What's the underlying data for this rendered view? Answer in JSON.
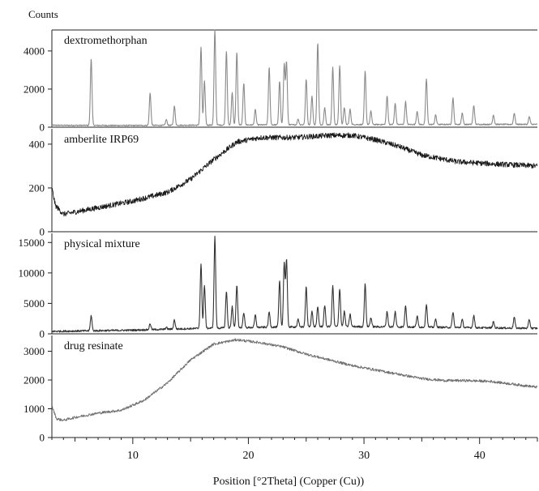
{
  "chart_data": {
    "type": "line",
    "ylabel": "Counts",
    "xlabel": "Position [°2Theta] (Copper (Cu))",
    "xlim": [
      3,
      45
    ],
    "x_ticks": [
      10,
      20,
      30,
      40
    ],
    "x_tick_labels": [
      "10",
      "20",
      "30",
      "40"
    ],
    "panels": [
      {
        "name": "dextromethorphan",
        "ylim": [
          0,
          5100
        ],
        "y_ticks": [
          0,
          2000,
          4000
        ],
        "y_tick_labels": [
          "0",
          "2000",
          "4000"
        ],
        "color": "#8a8a8a",
        "baseline": [
          [
            3,
            100
          ],
          [
            10,
            90
          ],
          [
            20,
            120
          ],
          [
            30,
            140
          ],
          [
            45,
            150
          ]
        ],
        "noise": 30,
        "peaks": [
          {
            "x": 6.4,
            "y": 3500
          },
          {
            "x": 11.5,
            "y": 1700
          },
          {
            "x": 12.9,
            "y": 300
          },
          {
            "x": 13.6,
            "y": 1000
          },
          {
            "x": 15.9,
            "y": 4100
          },
          {
            "x": 16.2,
            "y": 2300
          },
          {
            "x": 17.1,
            "y": 5000
          },
          {
            "x": 18.1,
            "y": 3900
          },
          {
            "x": 18.6,
            "y": 1700
          },
          {
            "x": 19.0,
            "y": 3800
          },
          {
            "x": 19.6,
            "y": 2200
          },
          {
            "x": 20.6,
            "y": 800
          },
          {
            "x": 21.8,
            "y": 3000
          },
          {
            "x": 22.7,
            "y": 2300
          },
          {
            "x": 23.1,
            "y": 3200
          },
          {
            "x": 23.3,
            "y": 3300
          },
          {
            "x": 24.3,
            "y": 300
          },
          {
            "x": 25.0,
            "y": 2400
          },
          {
            "x": 25.5,
            "y": 1500
          },
          {
            "x": 26.0,
            "y": 4300
          },
          {
            "x": 26.6,
            "y": 900
          },
          {
            "x": 27.3,
            "y": 3000
          },
          {
            "x": 27.9,
            "y": 3100
          },
          {
            "x": 28.3,
            "y": 900
          },
          {
            "x": 28.8,
            "y": 800
          },
          {
            "x": 30.1,
            "y": 2800
          },
          {
            "x": 30.6,
            "y": 700
          },
          {
            "x": 32.0,
            "y": 1500
          },
          {
            "x": 32.7,
            "y": 1100
          },
          {
            "x": 33.6,
            "y": 1200
          },
          {
            "x": 34.6,
            "y": 700
          },
          {
            "x": 35.4,
            "y": 2400
          },
          {
            "x": 36.2,
            "y": 500
          },
          {
            "x": 37.7,
            "y": 1400
          },
          {
            "x": 38.5,
            "y": 600
          },
          {
            "x": 39.5,
            "y": 1000
          },
          {
            "x": 41.2,
            "y": 500
          },
          {
            "x": 43.0,
            "y": 600
          },
          {
            "x": 44.3,
            "y": 400
          }
        ]
      },
      {
        "name": "amberlite IRP69",
        "ylim": [
          0,
          470
        ],
        "y_ticks": [
          0,
          200,
          400
        ],
        "y_tick_labels": [
          "0",
          "200",
          "400"
        ],
        "color": "#1a1a1a",
        "baseline": [
          [
            3,
            200
          ],
          [
            3.3,
            120
          ],
          [
            4,
            80
          ],
          [
            6,
            100
          ],
          [
            10,
            140
          ],
          [
            13,
            180
          ],
          [
            15,
            240
          ],
          [
            17,
            330
          ],
          [
            19,
            410
          ],
          [
            21,
            430
          ],
          [
            24,
            430
          ],
          [
            27,
            440
          ],
          [
            29,
            440
          ],
          [
            31,
            420
          ],
          [
            33,
            390
          ],
          [
            35,
            350
          ],
          [
            38,
            320
          ],
          [
            41,
            310
          ],
          [
            45,
            300
          ]
        ],
        "noise": 12,
        "peaks": []
      },
      {
        "name": "physical mixture",
        "ylim": [
          0,
          16500
        ],
        "y_ticks": [
          0,
          5000,
          10000,
          15000
        ],
        "y_tick_labels": [
          "0",
          "5000",
          "10000",
          "15000"
        ],
        "color": "#333333",
        "baseline": [
          [
            3,
            400
          ],
          [
            10,
            600
          ],
          [
            16,
            900
          ],
          [
            22,
            1100
          ],
          [
            28,
            1200
          ],
          [
            35,
            1100
          ],
          [
            45,
            900
          ]
        ],
        "noise": 150,
        "peaks": [
          {
            "x": 6.4,
            "y": 2500
          },
          {
            "x": 11.5,
            "y": 1000
          },
          {
            "x": 12.9,
            "y": 300
          },
          {
            "x": 13.6,
            "y": 1500
          },
          {
            "x": 15.9,
            "y": 10500
          },
          {
            "x": 16.2,
            "y": 7000
          },
          {
            "x": 17.1,
            "y": 15000
          },
          {
            "x": 18.1,
            "y": 6000
          },
          {
            "x": 18.6,
            "y": 3500
          },
          {
            "x": 19.0,
            "y": 7000
          },
          {
            "x": 19.6,
            "y": 2500
          },
          {
            "x": 20.6,
            "y": 2000
          },
          {
            "x": 21.8,
            "y": 2500
          },
          {
            "x": 22.7,
            "y": 7500
          },
          {
            "x": 23.1,
            "y": 10500
          },
          {
            "x": 23.3,
            "y": 11000
          },
          {
            "x": 24.3,
            "y": 1200
          },
          {
            "x": 25.0,
            "y": 6500
          },
          {
            "x": 25.5,
            "y": 2500
          },
          {
            "x": 26.0,
            "y": 3200
          },
          {
            "x": 26.6,
            "y": 3500
          },
          {
            "x": 27.3,
            "y": 6700
          },
          {
            "x": 27.9,
            "y": 6200
          },
          {
            "x": 28.3,
            "y": 2500
          },
          {
            "x": 28.8,
            "y": 2000
          },
          {
            "x": 30.1,
            "y": 7000
          },
          {
            "x": 30.6,
            "y": 1500
          },
          {
            "x": 32.0,
            "y": 2500
          },
          {
            "x": 32.7,
            "y": 2500
          },
          {
            "x": 33.6,
            "y": 3500
          },
          {
            "x": 34.6,
            "y": 1800
          },
          {
            "x": 35.4,
            "y": 3800
          },
          {
            "x": 36.2,
            "y": 1300
          },
          {
            "x": 37.7,
            "y": 2500
          },
          {
            "x": 38.5,
            "y": 1300
          },
          {
            "x": 39.5,
            "y": 2000
          },
          {
            "x": 41.2,
            "y": 1000
          },
          {
            "x": 43.0,
            "y": 1800
          },
          {
            "x": 44.3,
            "y": 1400
          }
        ]
      },
      {
        "name": "drug resinate",
        "ylim": [
          0,
          3550
        ],
        "y_ticks": [
          0,
          1000,
          2000,
          3000
        ],
        "y_tick_labels": [
          "0",
          "1000",
          "2000",
          "3000"
        ],
        "color": "#6e6e6e",
        "baseline": [
          [
            3,
            1100
          ],
          [
            3.4,
            650
          ],
          [
            4,
            600
          ],
          [
            5,
            700
          ],
          [
            7,
            850
          ],
          [
            9,
            950
          ],
          [
            11,
            1300
          ],
          [
            13,
            1900
          ],
          [
            15,
            2700
          ],
          [
            17,
            3250
          ],
          [
            19,
            3400
          ],
          [
            21,
            3300
          ],
          [
            23,
            3150
          ],
          [
            25,
            2900
          ],
          [
            27,
            2700
          ],
          [
            29,
            2500
          ],
          [
            31,
            2350
          ],
          [
            33,
            2200
          ],
          [
            35,
            2050
          ],
          [
            37,
            1980
          ],
          [
            39,
            1980
          ],
          [
            41,
            1950
          ],
          [
            43,
            1850
          ],
          [
            45,
            1750
          ]
        ],
        "noise": 45,
        "peaks": []
      }
    ]
  }
}
